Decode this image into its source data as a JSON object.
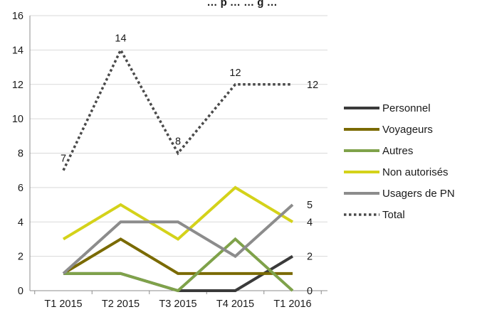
{
  "chart_data": {
    "type": "line",
    "title": "… p … … g …",
    "categories": [
      "T1 2015",
      "T2 2015",
      "T3 2015",
      "T4 2015",
      "T1 2016"
    ],
    "ylim": [
      0,
      16
    ],
    "yticks": [
      0,
      2,
      4,
      6,
      8,
      10,
      12,
      14,
      16
    ],
    "grid": "horizontal",
    "legend_position": "right",
    "series": [
      {
        "name": "Personnel",
        "values": [
          1,
          1,
          0,
          0,
          2
        ],
        "color": "#3a3a3a",
        "style": "solid"
      },
      {
        "name": "Voyageurs",
        "values": [
          1,
          3,
          1,
          1,
          1
        ],
        "color": "#7a6a00",
        "style": "solid"
      },
      {
        "name": "Autres",
        "values": [
          1,
          1,
          0,
          3,
          0
        ],
        "color": "#7fa24a",
        "style": "solid"
      },
      {
        "name": "Non autorisés",
        "values": [
          3,
          5,
          3,
          6,
          4
        ],
        "color": "#d4d21a",
        "style": "solid"
      },
      {
        "name": "Usagers de PN",
        "values": [
          1,
          4,
          4,
          2,
          5
        ],
        "color": "#8c8c8c",
        "style": "solid"
      },
      {
        "name": "Total",
        "values": [
          7,
          14,
          8,
          12,
          12
        ],
        "color": "#4a4a4a",
        "style": "dotted"
      }
    ],
    "annotations": [
      {
        "text": "7",
        "at_category": "T1 2015",
        "value": 7
      },
      {
        "text": "14",
        "at_category": "T2 2015",
        "value": 14
      },
      {
        "text": "8",
        "at_category": "T3 2015",
        "value": 8
      },
      {
        "text": "12",
        "at_category": "T4 2015",
        "value": 12
      },
      {
        "text": "12",
        "at_category": "T1 2016",
        "value": 12
      },
      {
        "text": "5",
        "at_category": "T1 2016",
        "value": 5
      },
      {
        "text": "4",
        "at_category": "T1 2016",
        "value": 4
      },
      {
        "text": "2",
        "at_category": "T1 2016",
        "value": 2
      },
      {
        "text": "0",
        "at_category": "T1 2016",
        "value": 0
      }
    ]
  }
}
